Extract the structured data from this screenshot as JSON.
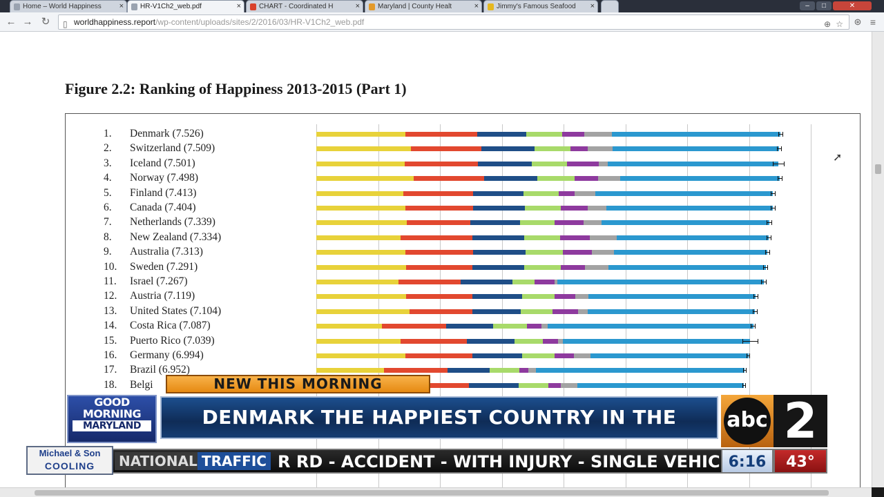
{
  "browser": {
    "tabs": [
      {
        "label": "Home – World Happiness",
        "active": false,
        "icon_color": "#9aa3b0"
      },
      {
        "label": "HR-V1Ch2_web.pdf",
        "active": true,
        "icon_color": "#9aa3b0"
      },
      {
        "label": "CHART - Coordinated H",
        "active": false,
        "icon_color": "#d9412b"
      },
      {
        "label": "Maryland | County Healt",
        "active": false,
        "icon_color": "#e39a2b"
      },
      {
        "label": "Jimmy's Famous Seafood",
        "active": false,
        "icon_color": "#e6b820"
      }
    ],
    "url_host": "worldhappiness.report",
    "url_path": "/wp-content/uploads/sites/2/2016/03/HR-V1Ch2_web.pdf"
  },
  "figure": {
    "title": "Figure 2.2: Ranking of Happiness 2013-2015 (Part 1)",
    "segment_colors": [
      "#e8d23a",
      "#e2482f",
      "#1f4e87",
      "#a8da6a",
      "#8e3a9e",
      "#a3a3a3",
      "#2b98cf"
    ]
  },
  "chart_data": {
    "type": "bar",
    "stacked": true,
    "orientation": "horizontal",
    "categories": [
      "Denmark",
      "Switzerland",
      "Iceland",
      "Norway",
      "Finland",
      "Canada",
      "Netherlands",
      "New Zealand",
      "Australia",
      "Sweden",
      "Israel",
      "Austria",
      "United States",
      "Costa Rica",
      "Puerto Rico",
      "Germany",
      "Brazil",
      "Belgium"
    ],
    "ranks": [
      "1.",
      "2.",
      "3.",
      "4.",
      "5.",
      "6.",
      "7.",
      "8.",
      "9.",
      "10.",
      "11.",
      "12.",
      "13.",
      "14.",
      "15.",
      "16.",
      "17.",
      "18."
    ],
    "labels": [
      "Denmark (7.526)",
      "Switzerland (7.509)",
      "Iceland (7.501)",
      "Norway (7.498)",
      "Finland (7.413)",
      "Canada (7.404)",
      "Netherlands (7.339)",
      "New Zealand (7.334)",
      "Australia (7.313)",
      "Sweden (7.291)",
      "Israel (7.267)",
      "Austria (7.119)",
      "United States (7.104)",
      "Costa Rica (7.087)",
      "Puerto Rico (7.039)",
      "Germany (6.994)",
      "Brazil (6.952)",
      "Belgi"
    ],
    "totals": [
      7.526,
      7.509,
      7.501,
      7.498,
      7.413,
      7.404,
      7.339,
      7.334,
      7.313,
      7.291,
      7.267,
      7.119,
      7.104,
      7.087,
      7.039,
      6.994,
      6.952,
      6.929
    ],
    "series": [
      {
        "values": [
          1.44,
          1.53,
          1.43,
          1.58,
          1.41,
          1.44,
          1.46,
          1.36,
          1.44,
          1.45,
          1.33,
          1.45,
          1.51,
          1.06,
          1.36,
          1.44,
          1.09,
          1.42
        ]
      },
      {
        "values": [
          1.16,
          1.14,
          1.19,
          1.13,
          1.13,
          1.1,
          1.03,
          1.17,
          1.1,
          1.08,
          1.0,
          1.08,
          1.02,
          1.04,
          1.08,
          1.08,
          1.03,
          1.05
        ]
      },
      {
        "values": [
          0.8,
          0.86,
          0.87,
          0.87,
          0.81,
          0.83,
          0.81,
          0.83,
          0.85,
          0.83,
          0.84,
          0.8,
          0.78,
          0.76,
          0.77,
          0.81,
          0.69,
          0.8
        ]
      },
      {
        "values": [
          0.58,
          0.58,
          0.57,
          0.6,
          0.57,
          0.58,
          0.55,
          0.58,
          0.6,
          0.59,
          0.36,
          0.53,
          0.51,
          0.55,
          0.46,
          0.53,
          0.47,
          0.48
        ]
      },
      {
        "values": [
          0.36,
          0.28,
          0.51,
          0.38,
          0.26,
          0.44,
          0.47,
          0.49,
          0.47,
          0.4,
          0.33,
          0.33,
          0.42,
          0.23,
          0.24,
          0.31,
          0.15,
          0.21
        ]
      },
      {
        "values": [
          0.44,
          0.4,
          0.14,
          0.36,
          0.34,
          0.3,
          0.3,
          0.43,
          0.36,
          0.38,
          0.04,
          0.21,
          0.15,
          0.1,
          0.08,
          0.27,
          0.12,
          0.26
        ]
      },
      {
        "values": [
          2.73,
          2.7,
          2.77,
          2.58,
          2.87,
          2.7,
          2.71,
          2.46,
          2.48,
          2.54,
          3.34,
          2.71,
          2.71,
          3.33,
          3.03,
          2.55,
          3.38,
          2.7
        ]
      }
    ],
    "error": [
      0.04,
      0.04,
      0.1,
      0.04,
      0.04,
      0.04,
      0.04,
      0.04,
      0.04,
      0.04,
      0.04,
      0.04,
      0.04,
      0.04,
      0.13,
      0.03,
      0.03,
      0.03
    ],
    "xlim": [
      0,
      8
    ],
    "grid": true
  },
  "overlay": {
    "tag": "NEW THIS MORNING",
    "show_logo": [
      "GOOD",
      "MORNING",
      "MARYLAND"
    ],
    "headline": "DENMARK THE HAPPIEST COUNTRY IN THE WORLD",
    "network_logo": "abc",
    "channel_number": "2",
    "sponsor_line1": "Michael & Son",
    "sponsor_line2": "COOLING",
    "ticker_category": "NATIONAL",
    "ticker_label": "TRAFFIC",
    "ticker_text": "R RD - ACCIDENT - WITH INJURY - SINGLE VEHIC",
    "time": "6:16",
    "temperature": "43°"
  }
}
